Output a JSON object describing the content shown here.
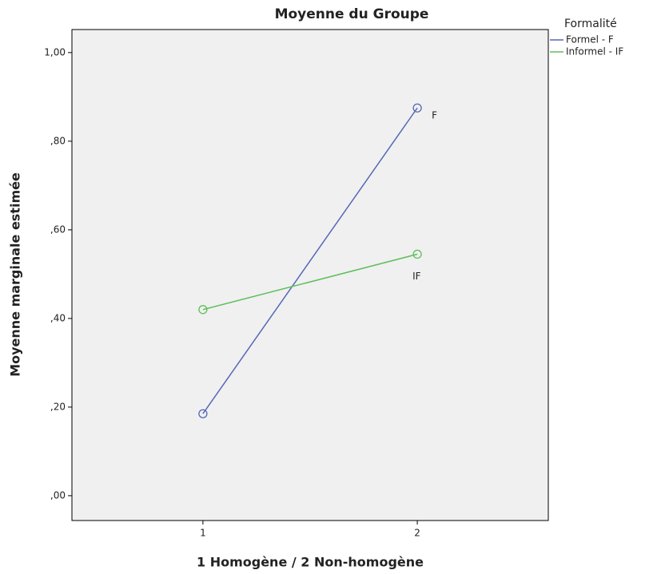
{
  "chart_data": {
    "type": "line",
    "title": "Moyenne du Groupe",
    "x_label": "1 Homogène / 2 Non-homogène",
    "y_label": "Moyenne marginale estimée",
    "legend_title": "Formalité",
    "legend": "right",
    "categories": [
      "1",
      "2"
    ],
    "series": [
      {
        "name": "Formel - F",
        "label": "F",
        "color": "#5468b8",
        "values": [
          0.185,
          0.875
        ]
      },
      {
        "name": "Informel - IF",
        "label": "IF",
        "color": "#5cbf5a",
        "values": [
          0.42,
          0.545
        ]
      }
    ],
    "ylim": [
      -0.056,
      1.052
    ],
    "yticks": [
      {
        "value": 0,
        "label": ",00"
      },
      {
        "value": 0.2,
        "label": ",20"
      },
      {
        "value": 0.4,
        "label": ",40"
      },
      {
        "value": 0.6,
        "label": ",60"
      },
      {
        "value": 0.8,
        "label": ",80"
      },
      {
        "value": 1,
        "label": "1,00"
      }
    ],
    "grid": false
  }
}
